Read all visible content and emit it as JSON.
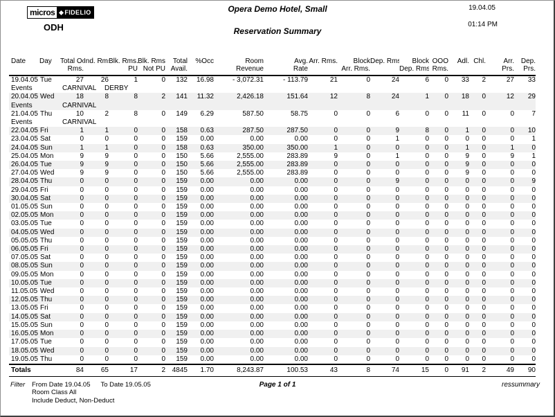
{
  "page": {
    "logo_micros": "micros",
    "logo_fidelio": "FIDELIO",
    "property_code": "ODH",
    "hotel_name": "Opera Demo Hotel, Small",
    "report_title": "Reservation Summary",
    "print_date": "19.04.05",
    "print_time": "01:14 PM"
  },
  "table": {
    "events_label": "Events",
    "totals_label": "Totals",
    "columns": [
      {
        "lines": [
          "Date"
        ],
        "align": "left"
      },
      {
        "lines": [
          "Day"
        ],
        "align": "left"
      },
      {
        "lines": [
          "Total Occ.",
          "Rms."
        ],
        "align": "right"
      },
      {
        "lines": [
          "Ind. Rms."
        ],
        "align": "right"
      },
      {
        "lines": [
          "Blk. Rms.",
          "PU"
        ],
        "align": "right"
      },
      {
        "lines": [
          "Blk. Rms.",
          "Not PU"
        ],
        "align": "right"
      },
      {
        "lines": [
          "Total",
          "Avail."
        ],
        "align": "right"
      },
      {
        "lines": [
          "%Occ"
        ],
        "align": "right"
      },
      {
        "lines": [
          "Room",
          "Revenue"
        ],
        "align": "right"
      },
      {
        "lines": [
          "Avg.",
          "Rate"
        ],
        "align": "right"
      },
      {
        "lines": [
          "Arr. Rms."
        ],
        "align": "right"
      },
      {
        "lines": [
          "Block",
          "Arr. Rms."
        ],
        "align": "right"
      },
      {
        "lines": [
          "Dep. Rms."
        ],
        "align": "right"
      },
      {
        "lines": [
          "Block",
          "Dep. Rms."
        ],
        "align": "right"
      },
      {
        "lines": [
          "OOO",
          "Rms."
        ],
        "align": "right"
      },
      {
        "lines": [
          "Adl."
        ],
        "align": "right"
      },
      {
        "lines": [
          "Chl."
        ],
        "align": "right"
      },
      {
        "lines": [
          "Arr.",
          "Prs."
        ],
        "align": "right"
      },
      {
        "lines": [
          "Dep.",
          "Prs."
        ],
        "align": "right"
      }
    ],
    "rows": [
      {
        "date": "19.04.05",
        "day": "Tue",
        "values": [
          "27",
          "26",
          "1",
          "0",
          "132",
          "16.98",
          "- 3,072.31",
          "- 113.79",
          "21",
          "0",
          "24",
          "6",
          "0",
          "33",
          "2",
          "27",
          "33"
        ],
        "events": [
          "CARNIVAL",
          "DERBY"
        ]
      },
      {
        "date": "20.04.05",
        "day": "Wed",
        "values": [
          "18",
          "8",
          "8",
          "2",
          "141",
          "11.32",
          "2,426.18",
          "151.64",
          "12",
          "8",
          "24",
          "1",
          "0",
          "18",
          "0",
          "12",
          "29"
        ],
        "events": [
          "CARNIVAL"
        ]
      },
      {
        "date": "21.04.05",
        "day": "Thu",
        "values": [
          "10",
          "2",
          "8",
          "0",
          "149",
          "6.29",
          "587.50",
          "58.75",
          "0",
          "0",
          "6",
          "0",
          "0",
          "11",
          "0",
          "0",
          "7"
        ],
        "events": [
          "CARNIVAL"
        ]
      },
      {
        "date": "22.04.05",
        "day": "Fri",
        "values": [
          "1",
          "1",
          "0",
          "0",
          "158",
          "0.63",
          "287.50",
          "287.50",
          "0",
          "0",
          "9",
          "8",
          "0",
          "1",
          "0",
          "0",
          "10"
        ]
      },
      {
        "date": "23.04.05",
        "day": "Sat",
        "values": [
          "0",
          "0",
          "0",
          "0",
          "159",
          "0.00",
          "0.00",
          "0.00",
          "0",
          "0",
          "1",
          "0",
          "0",
          "0",
          "0",
          "0",
          "1"
        ]
      },
      {
        "date": "24.04.05",
        "day": "Sun",
        "values": [
          "1",
          "1",
          "0",
          "0",
          "158",
          "0.63",
          "350.00",
          "350.00",
          "1",
          "0",
          "0",
          "0",
          "0",
          "1",
          "0",
          "1",
          "0"
        ]
      },
      {
        "date": "25.04.05",
        "day": "Mon",
        "values": [
          "9",
          "9",
          "0",
          "0",
          "150",
          "5.66",
          "2,555.00",
          "283.89",
          "9",
          "0",
          "1",
          "0",
          "0",
          "9",
          "0",
          "9",
          "1"
        ]
      },
      {
        "date": "26.04.05",
        "day": "Tue",
        "values": [
          "9",
          "9",
          "0",
          "0",
          "150",
          "5.66",
          "2,555.00",
          "283.89",
          "0",
          "0",
          "0",
          "0",
          "0",
          "9",
          "0",
          "0",
          "0"
        ]
      },
      {
        "date": "27.04.05",
        "day": "Wed",
        "values": [
          "9",
          "9",
          "0",
          "0",
          "150",
          "5.66",
          "2,555.00",
          "283.89",
          "0",
          "0",
          "0",
          "0",
          "0",
          "9",
          "0",
          "0",
          "0"
        ]
      },
      {
        "date": "28.04.05",
        "day": "Thu",
        "values": [
          "0",
          "0",
          "0",
          "0",
          "159",
          "0.00",
          "0.00",
          "0.00",
          "0",
          "0",
          "9",
          "0",
          "0",
          "0",
          "0",
          "0",
          "9"
        ]
      },
      {
        "date": "29.04.05",
        "day": "Fri",
        "values": [
          "0",
          "0",
          "0",
          "0",
          "159",
          "0.00",
          "0.00",
          "0.00",
          "0",
          "0",
          "0",
          "0",
          "0",
          "0",
          "0",
          "0",
          "0"
        ]
      },
      {
        "date": "30.04.05",
        "day": "Sat",
        "values": [
          "0",
          "0",
          "0",
          "0",
          "159",
          "0.00",
          "0.00",
          "0.00",
          "0",
          "0",
          "0",
          "0",
          "0",
          "0",
          "0",
          "0",
          "0"
        ]
      },
      {
        "date": "01.05.05",
        "day": "Sun",
        "values": [
          "0",
          "0",
          "0",
          "0",
          "159",
          "0.00",
          "0.00",
          "0.00",
          "0",
          "0",
          "0",
          "0",
          "0",
          "0",
          "0",
          "0",
          "0"
        ]
      },
      {
        "date": "02.05.05",
        "day": "Mon",
        "values": [
          "0",
          "0",
          "0",
          "0",
          "159",
          "0.00",
          "0.00",
          "0.00",
          "0",
          "0",
          "0",
          "0",
          "0",
          "0",
          "0",
          "0",
          "0"
        ]
      },
      {
        "date": "03.05.05",
        "day": "Tue",
        "values": [
          "0",
          "0",
          "0",
          "0",
          "159",
          "0.00",
          "0.00",
          "0.00",
          "0",
          "0",
          "0",
          "0",
          "0",
          "0",
          "0",
          "0",
          "0"
        ]
      },
      {
        "date": "04.05.05",
        "day": "Wed",
        "values": [
          "0",
          "0",
          "0",
          "0",
          "159",
          "0.00",
          "0.00",
          "0.00",
          "0",
          "0",
          "0",
          "0",
          "0",
          "0",
          "0",
          "0",
          "0"
        ]
      },
      {
        "date": "05.05.05",
        "day": "Thu",
        "values": [
          "0",
          "0",
          "0",
          "0",
          "159",
          "0.00",
          "0.00",
          "0.00",
          "0",
          "0",
          "0",
          "0",
          "0",
          "0",
          "0",
          "0",
          "0"
        ]
      },
      {
        "date": "06.05.05",
        "day": "Fri",
        "values": [
          "0",
          "0",
          "0",
          "0",
          "159",
          "0.00",
          "0.00",
          "0.00",
          "0",
          "0",
          "0",
          "0",
          "0",
          "0",
          "0",
          "0",
          "0"
        ]
      },
      {
        "date": "07.05.05",
        "day": "Sat",
        "values": [
          "0",
          "0",
          "0",
          "0",
          "159",
          "0.00",
          "0.00",
          "0.00",
          "0",
          "0",
          "0",
          "0",
          "0",
          "0",
          "0",
          "0",
          "0"
        ]
      },
      {
        "date": "08.05.05",
        "day": "Sun",
        "values": [
          "0",
          "0",
          "0",
          "0",
          "159",
          "0.00",
          "0.00",
          "0.00",
          "0",
          "0",
          "0",
          "0",
          "0",
          "0",
          "0",
          "0",
          "0"
        ]
      },
      {
        "date": "09.05.05",
        "day": "Mon",
        "values": [
          "0",
          "0",
          "0",
          "0",
          "159",
          "0.00",
          "0.00",
          "0.00",
          "0",
          "0",
          "0",
          "0",
          "0",
          "0",
          "0",
          "0",
          "0"
        ]
      },
      {
        "date": "10.05.05",
        "day": "Tue",
        "values": [
          "0",
          "0",
          "0",
          "0",
          "159",
          "0.00",
          "0.00",
          "0.00",
          "0",
          "0",
          "0",
          "0",
          "0",
          "0",
          "0",
          "0",
          "0"
        ]
      },
      {
        "date": "11.05.05",
        "day": "Wed",
        "values": [
          "0",
          "0",
          "0",
          "0",
          "159",
          "0.00",
          "0.00",
          "0.00",
          "0",
          "0",
          "0",
          "0",
          "0",
          "0",
          "0",
          "0",
          "0"
        ]
      },
      {
        "date": "12.05.05",
        "day": "Thu",
        "values": [
          "0",
          "0",
          "0",
          "0",
          "159",
          "0.00",
          "0.00",
          "0.00",
          "0",
          "0",
          "0",
          "0",
          "0",
          "0",
          "0",
          "0",
          "0"
        ]
      },
      {
        "date": "13.05.05",
        "day": "Fri",
        "values": [
          "0",
          "0",
          "0",
          "0",
          "159",
          "0.00",
          "0.00",
          "0.00",
          "0",
          "0",
          "0",
          "0",
          "0",
          "0",
          "0",
          "0",
          "0"
        ]
      },
      {
        "date": "14.05.05",
        "day": "Sat",
        "values": [
          "0",
          "0",
          "0",
          "0",
          "159",
          "0.00",
          "0.00",
          "0.00",
          "0",
          "0",
          "0",
          "0",
          "0",
          "0",
          "0",
          "0",
          "0"
        ]
      },
      {
        "date": "15.05.05",
        "day": "Sun",
        "values": [
          "0",
          "0",
          "0",
          "0",
          "159",
          "0.00",
          "0.00",
          "0.00",
          "0",
          "0",
          "0",
          "0",
          "0",
          "0",
          "0",
          "0",
          "0"
        ]
      },
      {
        "date": "16.05.05",
        "day": "Mon",
        "values": [
          "0",
          "0",
          "0",
          "0",
          "159",
          "0.00",
          "0.00",
          "0.00",
          "0",
          "0",
          "0",
          "0",
          "0",
          "0",
          "0",
          "0",
          "0"
        ]
      },
      {
        "date": "17.05.05",
        "day": "Tue",
        "values": [
          "0",
          "0",
          "0",
          "0",
          "159",
          "0.00",
          "0.00",
          "0.00",
          "0",
          "0",
          "0",
          "0",
          "0",
          "0",
          "0",
          "0",
          "0"
        ]
      },
      {
        "date": "18.05.05",
        "day": "Wed",
        "values": [
          "0",
          "0",
          "0",
          "0",
          "159",
          "0.00",
          "0.00",
          "0.00",
          "0",
          "0",
          "0",
          "0",
          "0",
          "0",
          "0",
          "0",
          "0"
        ]
      },
      {
        "date": "19.05.05",
        "day": "Thu",
        "values": [
          "0",
          "0",
          "0",
          "0",
          "159",
          "0.00",
          "0.00",
          "0.00",
          "0",
          "0",
          "0",
          "0",
          "0",
          "0",
          "0",
          "0",
          "0"
        ]
      }
    ],
    "totals": [
      "84",
      "65",
      "17",
      "2",
      "4845",
      "1.70",
      "8,243.87",
      "100.53",
      "43",
      "8",
      "74",
      "15",
      "0",
      "91",
      "2",
      "49",
      "90"
    ]
  },
  "footer": {
    "filter_label": "Filter",
    "filter_from": "From Date 19.04.05",
    "filter_to": "To Date 19.05.05",
    "room_class": "Room Class All",
    "include_line": "Include Deduct, Non-Deduct",
    "page_info": "Page 1 of 1",
    "report_id": "ressummary"
  }
}
